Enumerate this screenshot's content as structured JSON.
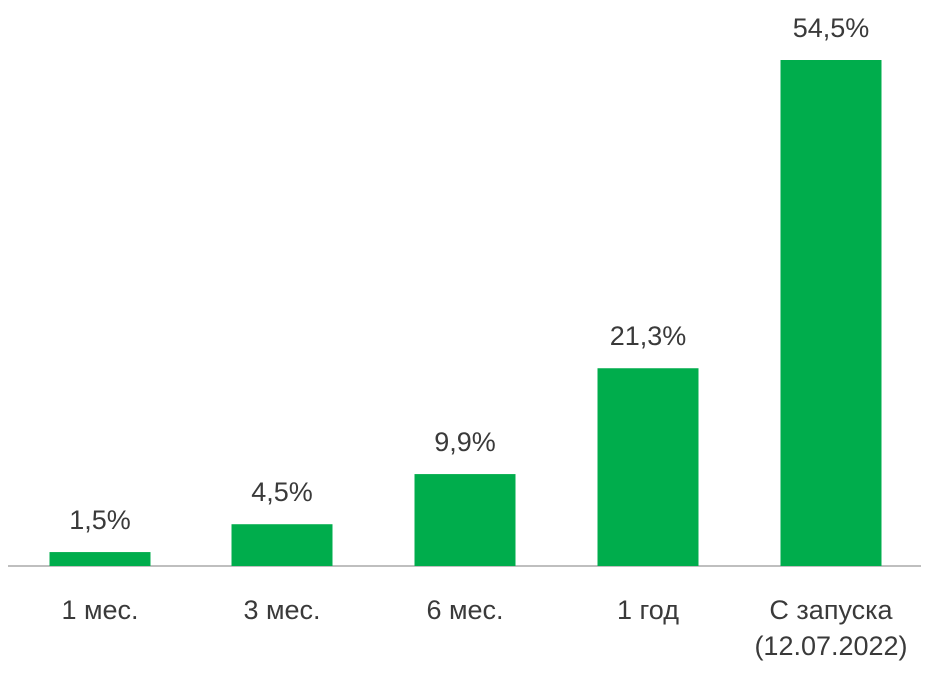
{
  "chart_data": {
    "type": "bar",
    "categories": [
      [
        "1 мес."
      ],
      [
        "3 мес."
      ],
      [
        "6 мес."
      ],
      [
        "1 год"
      ],
      [
        "С запуска",
        "(12.07.2022)"
      ]
    ],
    "values": [
      1.5,
      4.5,
      9.9,
      21.3,
      54.5
    ],
    "value_labels": [
      "1,5%",
      "4,5%",
      "9,9%",
      "21,3%",
      "54,5%"
    ],
    "title": "",
    "xlabel": "",
    "ylabel": "",
    "ylim": [
      0,
      54.5
    ],
    "grid": false,
    "legend": "none",
    "colors": {
      "bar": "#00ad4c",
      "axis": "#bfbfbf",
      "text": "#3a3a3a"
    }
  }
}
